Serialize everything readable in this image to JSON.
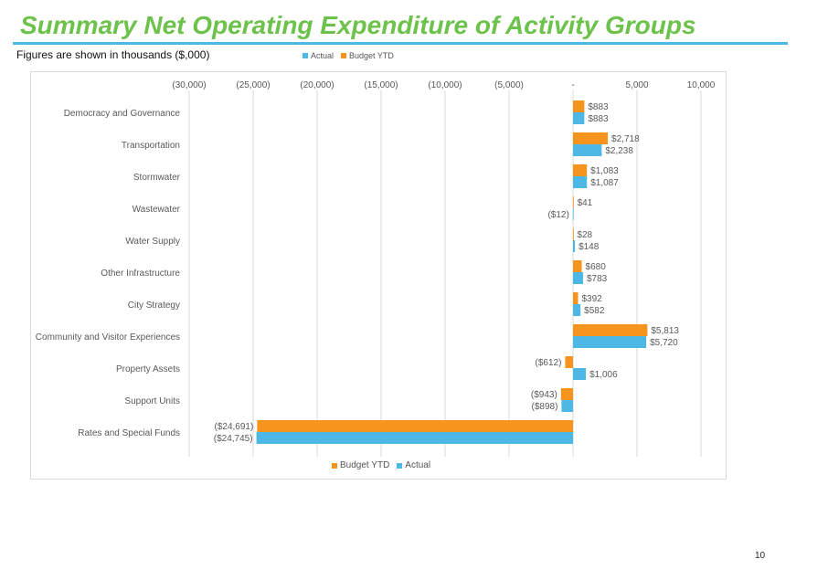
{
  "page": {
    "title": "Summary Net Operating Expenditure of Activity Groups",
    "subtitle": "Figures are shown in thousands ($,000)",
    "page_number": "10"
  },
  "colors": {
    "actual": "#4db7e6",
    "budget": "#f7941d",
    "title": "#6cc24a",
    "grid": "#d9d9d9",
    "text": "#595959"
  },
  "legend_top": [
    "Actual",
    "Budget YTD"
  ],
  "legend_bottom": [
    "Budget YTD",
    "Actual"
  ],
  "chart_data": {
    "type": "bar",
    "orientation": "horizontal",
    "title": "",
    "categories": [
      "Democracy and Governance",
      "Transportation",
      "Stormwater",
      "Wastewater",
      "Water Supply",
      "Other Infrastructure",
      "City Strategy",
      "Community and Visitor Experiences",
      "Property Assets",
      "Support Units",
      "Rates and Special Funds"
    ],
    "series": [
      {
        "name": "Budget YTD",
        "values": [
          883,
          2718,
          1083,
          41,
          28,
          680,
          392,
          5813,
          -612,
          -943,
          -24691
        ],
        "labels": [
          "$883",
          "$2,718",
          "$1,083",
          "$41",
          "$28",
          "$680",
          "$392",
          "$5,813",
          "($612)",
          "($943)",
          "($24,691)"
        ]
      },
      {
        "name": "Actual",
        "values": [
          883,
          2238,
          1087,
          -12,
          148,
          783,
          582,
          5720,
          1006,
          -898,
          -24745
        ],
        "labels": [
          "$883",
          "$2,238",
          "$1,087",
          "($12)",
          "$148",
          "$783",
          "$582",
          "$5,720",
          "$1,006",
          "($898)",
          "($24,745)"
        ]
      }
    ],
    "xlim": [
      -30000,
      10000
    ],
    "xticks": [
      -30000,
      -25000,
      -20000,
      -15000,
      -10000,
      -5000,
      0,
      5000,
      10000
    ],
    "xtick_labels": [
      "(30,000)",
      "(25,000)",
      "(20,000)",
      "(15,000)",
      "(10,000)",
      "(5,000)",
      "-",
      "5,000",
      "10,000"
    ],
    "xaxis_position": "top",
    "grid": true,
    "legend_position": "bottom"
  }
}
